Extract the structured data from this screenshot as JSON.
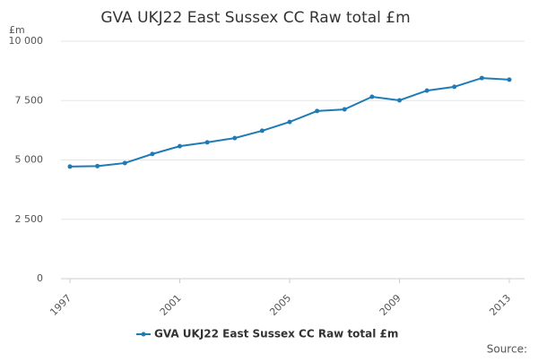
{
  "chart_data": {
    "type": "line",
    "title": "GVA UKJ22 East Sussex CC Raw total £m",
    "y_label": "£m",
    "source": "Source:",
    "x": [
      1997,
      1998,
      1999,
      2000,
      2001,
      2002,
      2003,
      2004,
      2005,
      2006,
      2007,
      2008,
      2009,
      2010,
      2011,
      2012,
      2013
    ],
    "series": [
      {
        "name": "GVA UKJ22 East Sussex CC Raw total £m",
        "color": "#1f7bb6",
        "values": [
          4720,
          4740,
          4870,
          5250,
          5580,
          5740,
          5920,
          6230,
          6600,
          7060,
          7130,
          7660,
          7510,
          7920,
          8080,
          8450,
          8380
        ]
      }
    ],
    "xlim": [
      1997,
      2013
    ],
    "xticks": [
      1997,
      2001,
      2005,
      2009,
      2013
    ],
    "ylim": [
      0,
      10000
    ],
    "yticks": [
      0,
      {
        "value": 2500,
        "label": "2 500"
      },
      {
        "value": 5000,
        "label": "5 000"
      },
      {
        "value": 7500,
        "label": "7 500"
      },
      {
        "value": 10000,
        "label": "10 000"
      }
    ],
    "grid": true,
    "legend": "bottom"
  }
}
